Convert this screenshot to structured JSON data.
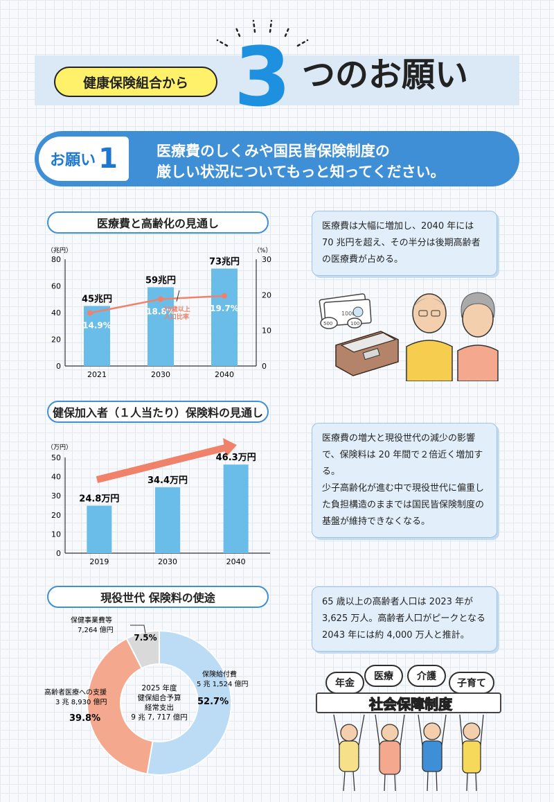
{
  "header": {
    "org_label": "健康保険組合から",
    "number": "3",
    "title_rest": "つのお願い"
  },
  "request": {
    "label_word": "お願い",
    "label_number": "1",
    "line1": "医療費のしくみや国民皆保険制度の",
    "line2": "厳しい状況についてもっと知ってください。"
  },
  "section1": {
    "title": "医療費と高齢化の見通し",
    "info": "医療費は大幅に増加し、2040 年には 70 兆円を超え、その半分は後期高齢者の医療費が占める。"
  },
  "section2": {
    "title": "健保加入者（１人当たり）保険料の見通し",
    "info_p1": "医療費の増大と現役世代の減少の影響で、保険料は 20 年間で２倍近く増加する。",
    "info_p2": "少子高齢化が進む中で現役世代に偏重した負担構造のままでは国民皆保険制度の基盤が維持できなくなる。"
  },
  "section3": {
    "title": "現役世代 保険料の使途",
    "info": "65 歳以上の高齢者人口は 2023 年が 3,625 万人。高齢者人口がピークとなる 2043 年には約 4,000 万人と推計。"
  },
  "illustration": {
    "bill_text": "10000",
    "coin1": "500",
    "coin2": "100"
  },
  "social_security": {
    "items": [
      "年金",
      "医療",
      "介護",
      "子育て"
    ],
    "banner": "社会保障制度"
  },
  "colors": {
    "bar": "#6bbde9",
    "line": "#f0826a",
    "accent": "#1e90e0",
    "banner": "#3f8fd6",
    "pie_blue": "#bcdcf5",
    "pie_orange": "#f4a88e",
    "pie_gray": "#d9d9d9"
  },
  "chart_data": [
    {
      "type": "bar",
      "title": "医療費と高齢化の見通し",
      "categories": [
        "2021",
        "2030",
        "2040"
      ],
      "series": [
        {
          "values": [
            45,
            59,
            73
          ],
          "labels": [
            "45兆円",
            "59兆円",
            "73兆円"
          ],
          "unit": "兆円"
        },
        {
          "name": "75歳以上人口比率",
          "type": "line",
          "values": [
            14.9,
            18.8,
            19.7
          ],
          "labels": [
            "14.9%",
            "18.8%",
            "19.7%"
          ],
          "unit": "%"
        }
      ],
      "yleft": {
        "unit_label": "（兆円）",
        "ylim": [
          0,
          80
        ],
        "ticks": [
          "0",
          "20",
          "40",
          "60",
          "80"
        ]
      },
      "yright": {
        "unit_label": "（%）",
        "ylim": [
          0,
          30
        ],
        "ticks": [
          "0",
          "10",
          "20",
          "30"
        ]
      },
      "annotation_line1": "75歳以上",
      "annotation_line2": "人口比率"
    },
    {
      "type": "bar",
      "title": "健保加入者（１人当たり）保険料の見通し",
      "categories": [
        "2019",
        "2030",
        "2040"
      ],
      "values": [
        24.8,
        34.4,
        46.3
      ],
      "labels": [
        "24.8万円",
        "34.4万円",
        "46.3万円"
      ],
      "y_unit_label": "（万円）",
      "ylim": [
        0,
        50
      ],
      "ticks": [
        "0",
        "10",
        "20",
        "30",
        "40",
        "50"
      ]
    },
    {
      "type": "pie",
      "title": "現役世代 保険料の使途",
      "center": {
        "line1": "2025 年度",
        "line2": "健保組合予算",
        "line3": "経常支出",
        "line4": "9 兆 7, 717 億円"
      },
      "slices": [
        {
          "name": "保険給付費",
          "amount": "5 兆 1,524 億円",
          "percent": 52.7,
          "label": "52.7%"
        },
        {
          "name": "高齢者医療への支援",
          "amount": "3 兆 8,930 億円",
          "percent": 39.8,
          "label": "39.8%"
        },
        {
          "name": "保健事業費等",
          "amount": "7,264 億円",
          "percent": 7.5,
          "label": "7.5%"
        }
      ]
    }
  ]
}
